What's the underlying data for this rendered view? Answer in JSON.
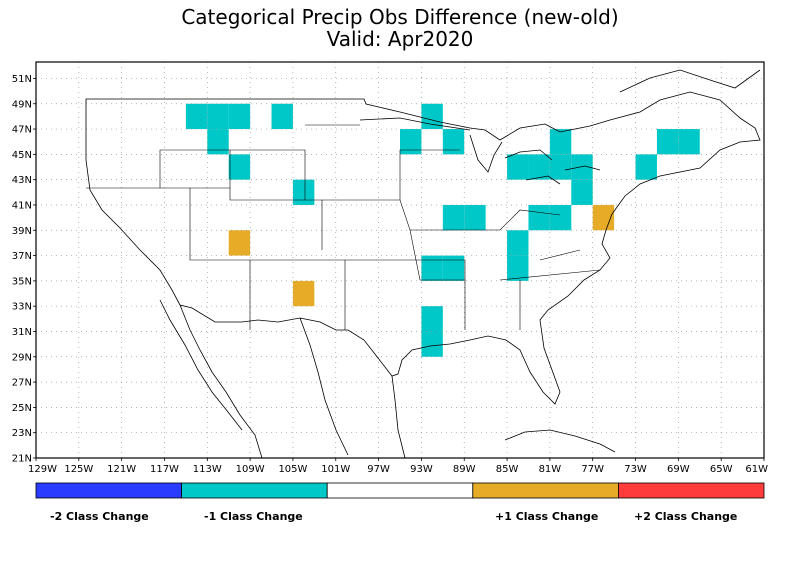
{
  "title": {
    "line1": "Categorical Precip Obs Difference (new-old)",
    "line2": "Valid: Apr2020"
  },
  "axes": {
    "lat_labels": [
      "51N",
      "49N",
      "47N",
      "45N",
      "43N",
      "41N",
      "39N",
      "37N",
      "35N",
      "33N",
      "31N",
      "29N",
      "27N",
      "25N",
      "23N",
      "21N"
    ],
    "lat_values": [
      51,
      49,
      47,
      45,
      43,
      41,
      39,
      37,
      35,
      33,
      31,
      29,
      27,
      25,
      23,
      21
    ],
    "lon_labels": [
      "129W",
      "125W",
      "121W",
      "117W",
      "113W",
      "109W",
      "105W",
      "101W",
      "97W",
      "93W",
      "89W",
      "85W",
      "81W",
      "77W",
      "73W",
      "69W",
      "65W",
      "61W"
    ],
    "lon_values": [
      -129,
      -125,
      -121,
      -117,
      -113,
      -109,
      -105,
      -101,
      -97,
      -93,
      -89,
      -85,
      -81,
      -77,
      -73,
      -69,
      -65,
      -61
    ],
    "lon_range": [
      -129,
      -61
    ],
    "lat_range": [
      21,
      52.3
    ],
    "grid": true
  },
  "colors": {
    "minus2": "#2a3cff",
    "minus1": "#00c8c8",
    "zero": "#ffffff",
    "plus1": "#e6ac28",
    "plus2": "#ff3c3c"
  },
  "legend": {
    "labels": [
      "-2 Class Change",
      "-1 Class Change",
      "+1 Class Change",
      "+2 Class Change"
    ]
  },
  "cells": [
    {
      "lon": -114,
      "lat": 48,
      "v": -1
    },
    {
      "lon": -112,
      "lat": 48,
      "v": -1
    },
    {
      "lon": -110,
      "lat": 48,
      "v": -1
    },
    {
      "lon": -106,
      "lat": 48,
      "v": -1
    },
    {
      "lon": -92,
      "lat": 48,
      "v": -1
    },
    {
      "lon": -112,
      "lat": 46,
      "v": -1
    },
    {
      "lon": -94,
      "lat": 46,
      "v": -1
    },
    {
      "lon": -90,
      "lat": 46,
      "v": -1
    },
    {
      "lon": -80,
      "lat": 46,
      "v": -1
    },
    {
      "lon": -70,
      "lat": 46,
      "v": -1
    },
    {
      "lon": -68,
      "lat": 46,
      "v": -1
    },
    {
      "lon": -110,
      "lat": 44,
      "v": -1
    },
    {
      "lon": -78,
      "lat": 44,
      "v": -1
    },
    {
      "lon": -80,
      "lat": 44,
      "v": -1
    },
    {
      "lon": -82,
      "lat": 44,
      "v": -1
    },
    {
      "lon": -84,
      "lat": 44,
      "v": -1
    },
    {
      "lon": -72,
      "lat": 44,
      "v": -1
    },
    {
      "lon": -104,
      "lat": 42,
      "v": -1
    },
    {
      "lon": -78,
      "lat": 42,
      "v": -1
    },
    {
      "lon": -90,
      "lat": 40,
      "v": -1
    },
    {
      "lon": -88,
      "lat": 40,
      "v": -1
    },
    {
      "lon": -80,
      "lat": 40,
      "v": -1
    },
    {
      "lon": -82,
      "lat": 40,
      "v": -1
    },
    {
      "lon": -76,
      "lat": 40,
      "v": 1
    },
    {
      "lon": -110,
      "lat": 38,
      "v": 1
    },
    {
      "lon": -84,
      "lat": 38,
      "v": -1
    },
    {
      "lon": -92,
      "lat": 36,
      "v": -1
    },
    {
      "lon": -90,
      "lat": 36,
      "v": -1
    },
    {
      "lon": -84,
      "lat": 36,
      "v": -1
    },
    {
      "lon": -104,
      "lat": 34,
      "v": 1
    },
    {
      "lon": -92,
      "lat": 32,
      "v": -1
    },
    {
      "lon": -92,
      "lat": 30,
      "v": -1
    }
  ]
}
